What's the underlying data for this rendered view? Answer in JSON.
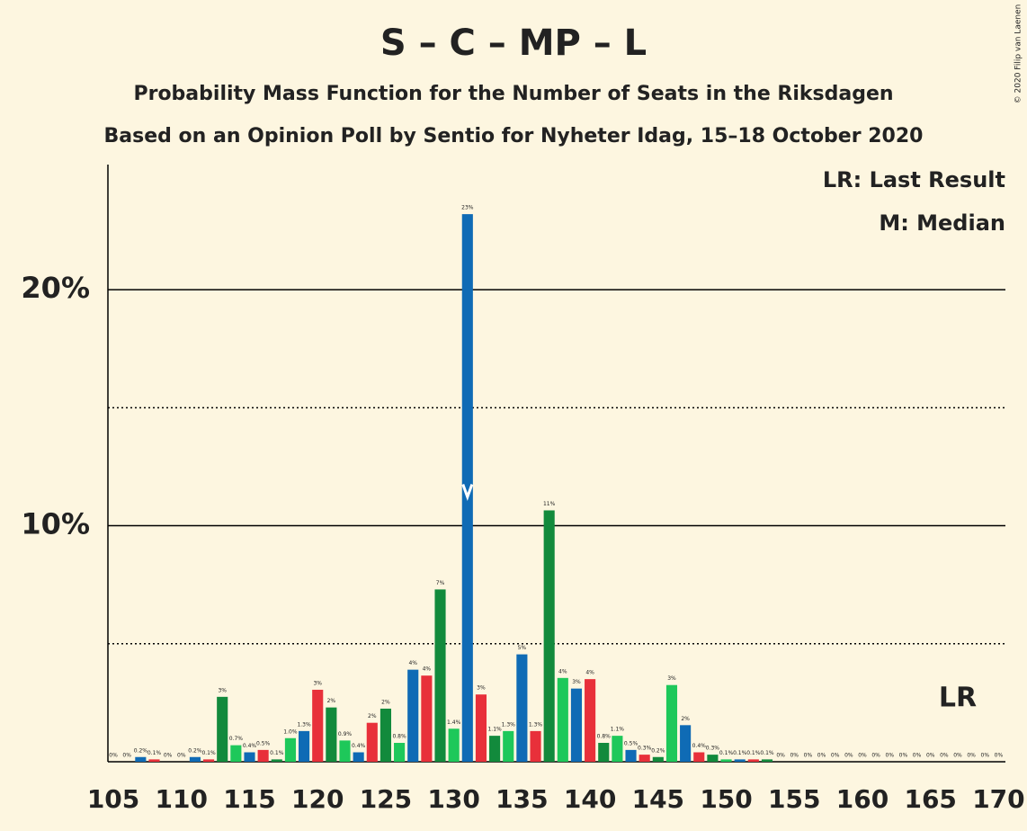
{
  "chart_data": {
    "type": "bar",
    "title": "S – C – MP – L",
    "subtitle": "Probability Mass Function for the Number of Seats in the Riksdagen",
    "subtitle2": "Based on an Opinion Poll by Sentio for Nyheter Idag, 15–18 October 2020",
    "legend_lr": "LR: Last Result",
    "legend_median": "M: Median",
    "lr_label": "LR",
    "copyright": "© 2020 Filip van Laenen",
    "palette": [
      "#128a3c",
      "#1ec85a",
      "#0f6bb5",
      "#e8303a"
    ],
    "median": 131,
    "last_result": 167,
    "x": [
      105,
      106,
      107,
      108,
      109,
      110,
      111,
      112,
      113,
      114,
      115,
      116,
      117,
      118,
      119,
      120,
      121,
      122,
      123,
      124,
      125,
      126,
      127,
      128,
      129,
      130,
      131,
      132,
      133,
      134,
      135,
      136,
      137,
      138,
      139,
      140,
      141,
      142,
      143,
      144,
      145,
      146,
      147,
      148,
      149,
      150,
      151,
      152,
      153,
      154,
      155,
      156,
      157,
      158,
      159,
      160,
      161,
      162,
      163,
      164,
      165,
      166,
      167,
      168,
      169,
      170
    ],
    "values": [
      0,
      0,
      0.2,
      0.1,
      0,
      0,
      0.2,
      0.1,
      2.75,
      0.7,
      0.4,
      0.5,
      0.1,
      1.0,
      1.3,
      3.05,
      2.3,
      0.9,
      0.4,
      1.65,
      2.25,
      0.8,
      3.9,
      3.65,
      7.3,
      1.4,
      23.2,
      2.85,
      1.1,
      1.3,
      4.55,
      1.3,
      10.65,
      3.55,
      3.1,
      3.5,
      0.8,
      1.1,
      0.5,
      0.3,
      0.2,
      3.25,
      1.55,
      0.4,
      0.3,
      0.1,
      0.1,
      0.1,
      0.1,
      0,
      0,
      0,
      0,
      0,
      0,
      0,
      0,
      0,
      0,
      0,
      0,
      0,
      0,
      0,
      0,
      0
    ],
    "value_labels": [
      "0%",
      "0%",
      "0.2%",
      "0.1%",
      "0%",
      "0%",
      "0.2%",
      "0.1%",
      "3%",
      "0.7%",
      "0.4%",
      "0.5%",
      "0.1%",
      "1.0%",
      "1.3%",
      "3%",
      "2%",
      "0.9%",
      "0.4%",
      "2%",
      "2%",
      "0.8%",
      "4%",
      "4%",
      "7%",
      "1.4%",
      "23%",
      "3%",
      "1.1%",
      "1.3%",
      "5%",
      "1.3%",
      "11%",
      "4%",
      "3%",
      "4%",
      "0.8%",
      "1.1%",
      "0.5%",
      "0.3%",
      "0.2%",
      "3%",
      "2%",
      "0.4%",
      "0.3%",
      "0.1%",
      "0.1%",
      "0.1%",
      "0.1%",
      "0%",
      "0%",
      "0%",
      "0%",
      "0%",
      "0%",
      "0%",
      "0%",
      "0%",
      "0%",
      "0%",
      "0%",
      "0%",
      "0%",
      "0%",
      "0%",
      "0%"
    ],
    "xlim": [
      104.6,
      170.5
    ],
    "xticks": [
      105,
      110,
      115,
      120,
      125,
      130,
      135,
      140,
      145,
      150,
      155,
      160,
      165,
      170
    ],
    "ylim": [
      0,
      25.3
    ],
    "yticks": [
      {
        "value": 10,
        "label": "10%"
      },
      {
        "value": 20,
        "label": "20%"
      }
    ],
    "minor_gridlines": [
      5,
      15
    ]
  }
}
